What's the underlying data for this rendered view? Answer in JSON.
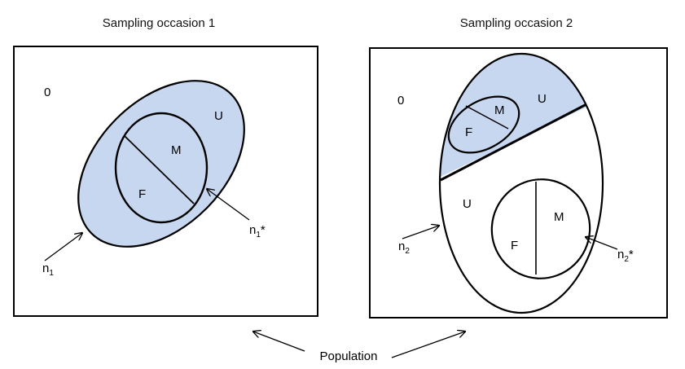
{
  "occasion1": {
    "title": "Sampling occasion 1",
    "zero_label": "0",
    "u_label": "U",
    "m_label": "M",
    "f_label": "F",
    "n_label": "n",
    "n_sub": "1",
    "nstar_label": "n",
    "nstar_sub": "1",
    "nstar_suffix": "*"
  },
  "occasion2": {
    "title": "Sampling occasion 2",
    "zero_label": "0",
    "u_top_label": "U",
    "m_top_label": "M",
    "f_top_label": "F",
    "u_bottom_label": "U",
    "m_bottom_label": "M",
    "f_bottom_label": "F",
    "n_label": "n",
    "n_sub": "2",
    "nstar_label": "n",
    "nstar_sub": "2",
    "nstar_suffix": "*"
  },
  "population_label": "Population",
  "colors": {
    "fill_blue": "#c6d7ef",
    "stroke": "#000000",
    "background": "#ffffff"
  }
}
